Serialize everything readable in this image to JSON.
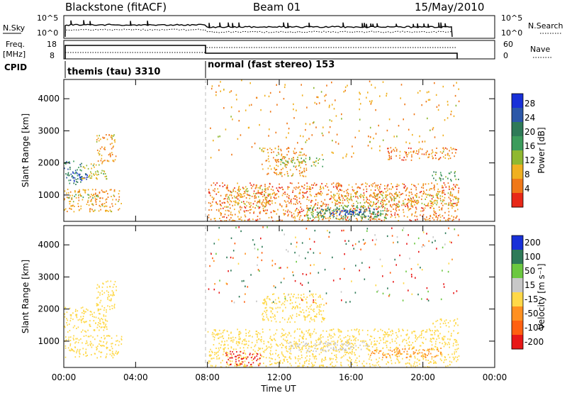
{
  "header": {
    "station": "Blackstone (fitACF)",
    "beam": "Beam 01",
    "date": "15/May/2010"
  },
  "panels": {
    "nsky": {
      "label": "N.Sky",
      "ticks": [
        "10^5",
        "10^0"
      ]
    },
    "nsearch": {
      "label": "N.Search"
    },
    "freq": {
      "label_line1": "Freq.",
      "label_line2": "[MHz]",
      "ticks": [
        "18",
        "8"
      ]
    },
    "nave": {
      "label": "Nave",
      "ticks": [
        "60",
        "0"
      ]
    },
    "cpid": {
      "label": "CPID",
      "mode1": "themis (tau) 3310",
      "mode2": "normal (fast stereo) 153"
    }
  },
  "colors": {
    "power": [
      "#1830d8",
      "#2c58a8",
      "#2e7a58",
      "#3c9c5c",
      "#8fb830",
      "#f0b020",
      "#f07818",
      "#e82818"
    ],
    "velocity": [
      "#1830d8",
      "#2e7a58",
      "#6cc840",
      "#c8c8c8",
      "#ffd848",
      "#ff9020",
      "#ff6010",
      "#e81818"
    ],
    "ground_scatter": "#c8c8c8"
  },
  "chart_data": [
    {
      "type": "heatmap",
      "title": "Power",
      "ylabel": "Slant Range [km]",
      "xlabel": "",
      "x_ticks": [
        "00:00",
        "04:00",
        "08:00",
        "12:00",
        "16:00",
        "20:00",
        "00:00"
      ],
      "y_ticks": [
        "1000",
        "2000",
        "3000",
        "4000"
      ],
      "xlim_hours": [
        0,
        24
      ],
      "ylim_km": [
        180,
        4600
      ],
      "colorbar": {
        "label": "Power [dB]",
        "ticks": [
          "28",
          "24",
          "20",
          "16",
          "12",
          "8",
          "4"
        ],
        "range": [
          0,
          30
        ]
      },
      "regions": [
        {
          "t0": 0.0,
          "t1": 1.0,
          "r0": 1300,
          "r1": 2100,
          "level": 20
        },
        {
          "t0": 0.3,
          "t1": 1.3,
          "r0": 1450,
          "r1": 1750,
          "level": 26
        },
        {
          "t0": 1.0,
          "t1": 2.4,
          "r0": 1500,
          "r1": 2000,
          "level": 12
        },
        {
          "t0": 1.8,
          "t1": 2.9,
          "r0": 2000,
          "r1": 2900,
          "level": 8
        },
        {
          "t0": 0.0,
          "t1": 3.2,
          "r0": 500,
          "r1": 1200,
          "level": 8
        },
        {
          "t0": 0.2,
          "t1": 2.0,
          "r0": 900,
          "r1": 1050,
          "level": 14
        },
        {
          "t0": 8.0,
          "t1": 22.0,
          "r0": 180,
          "r1": 1400,
          "level": 6
        },
        {
          "t0": 9.0,
          "t1": 11.5,
          "r0": 650,
          "r1": 1250,
          "level": 10
        },
        {
          "t0": 11.0,
          "t1": 13.5,
          "r0": 1600,
          "r1": 2500,
          "level": 8
        },
        {
          "t0": 12.0,
          "t1": 14.5,
          "r0": 1900,
          "r1": 2200,
          "level": 14
        },
        {
          "t0": 13.5,
          "t1": 18.0,
          "r0": 250,
          "r1": 700,
          "level": 16
        },
        {
          "t0": 14.0,
          "t1": 17.5,
          "r0": 350,
          "r1": 600,
          "level": 22
        },
        {
          "t0": 14.8,
          "t1": 16.5,
          "r0": 400,
          "r1": 550,
          "level": 28
        },
        {
          "t0": 15.0,
          "t1": 22.0,
          "r0": 650,
          "r1": 1100,
          "level": 10
        },
        {
          "t0": 20.5,
          "t1": 22.0,
          "r0": 1450,
          "r1": 1750,
          "level": 18
        },
        {
          "t0": 18.0,
          "t1": 22.0,
          "r0": 2100,
          "r1": 2500,
          "level": 6
        }
      ]
    },
    {
      "type": "heatmap",
      "title": "Velocity",
      "ylabel": "Slant Range [km]",
      "xlabel": "Time UT",
      "x_ticks": [
        "00:00",
        "04:00",
        "08:00",
        "12:00",
        "16:00",
        "20:00",
        "00:00"
      ],
      "y_ticks": [
        "1000",
        "2000",
        "3000",
        "4000"
      ],
      "xlim_hours": [
        0,
        24
      ],
      "ylim_km": [
        180,
        4600
      ],
      "colorbar": {
        "label": "Velocity [m s⁻¹]",
        "ticks": [
          "200",
          "100",
          "50",
          "15",
          "-15",
          "-50",
          "-100",
          "-200"
        ],
        "range": [
          -250,
          250
        ]
      },
      "regions": [
        {
          "t0": 0.0,
          "t1": 2.4,
          "r0": 1300,
          "r1": 2100,
          "level": 0
        },
        {
          "t0": 1.8,
          "t1": 2.9,
          "r0": 2000,
          "r1": 2900,
          "level": 0
        },
        {
          "t0": 0.0,
          "t1": 3.2,
          "r0": 500,
          "r1": 1200,
          "level": 0
        },
        {
          "t0": 8.0,
          "t1": 22.0,
          "r0": 180,
          "r1": 1400,
          "level": 0
        },
        {
          "t0": 9.0,
          "t1": 11.0,
          "r0": 250,
          "r1": 700,
          "level": -150
        },
        {
          "t0": 11.0,
          "t1": 14.5,
          "r0": 1600,
          "r1": 2500,
          "level": 0
        },
        {
          "t0": 12.5,
          "t1": 17.0,
          "r0": 700,
          "r1": 1000,
          "level": 40
        },
        {
          "t0": 17.0,
          "t1": 21.0,
          "r0": 500,
          "r1": 800,
          "level": -30
        },
        {
          "t0": 20.5,
          "t1": 22.0,
          "r0": 1450,
          "r1": 1750,
          "level": 0
        }
      ]
    }
  ]
}
